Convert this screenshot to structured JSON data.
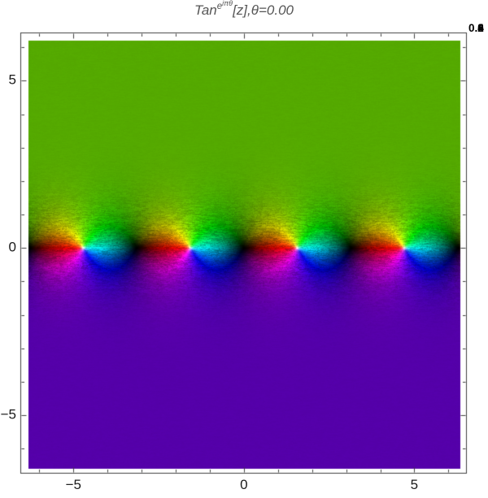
{
  "title": {
    "func": "Tan",
    "exp_base": "e",
    "exp_power": "iπθ",
    "arg": "[z],",
    "theta_symbol": "θ",
    "theta_value": "=0.00"
  },
  "corner_overlay": {
    "prefix": "0.",
    "frames": [
      "0",
      "2",
      "4",
      "6",
      "8"
    ]
  },
  "axes": {
    "x": {
      "ticks": [
        {
          "value": -5,
          "label": "−5"
        },
        {
          "value": 0,
          "label": "0"
        },
        {
          "value": 5,
          "label": "5"
        }
      ],
      "minor_step": 1
    },
    "y": {
      "ticks": [
        {
          "value": 5,
          "label": "5"
        },
        {
          "value": 0,
          "label": "0"
        },
        {
          "value": -5,
          "label": "−5"
        }
      ],
      "minor_step": 1
    }
  },
  "chart_data": {
    "type": "heatmap",
    "subtype": "complex-domain-coloring",
    "title": "Tan^(e^(iπθ))[z], θ=0.00",
    "function": "w = Tan[z]^(e^(i·π·θ))",
    "theta": 0.0,
    "x_range": [
      -6.32,
      6.35
    ],
    "y_range": [
      -6.6,
      6.2
    ],
    "x_ticks": [
      -5,
      0,
      5
    ],
    "y_ticks": [
      -5,
      0,
      5
    ],
    "minor_tick_step": 1,
    "grid": false,
    "frame": true,
    "color_mapping": {
      "hue": "arg(w): 0°=red, 60°=yellow, 120°=green, 180°=cyan, 240°=blue, 300°=magenta",
      "brightness": "increases with |w|: zeros → black, poles → white core",
      "upper_half_plane_color": "#57AD00",
      "lower_half_plane_color": "#5700AD"
    },
    "zeros_re": [
      -6.283,
      -3.142,
      0,
      3.142,
      6.283
    ],
    "poles_re": [
      -4.712,
      -1.571,
      1.571,
      4.712
    ],
    "frame_color": "#3f3f3f",
    "tick_label_color": "#1a1a1a",
    "background": "#ffffff",
    "noise": "GIF-style dither speckle concentrated in a band around the real axis"
  }
}
